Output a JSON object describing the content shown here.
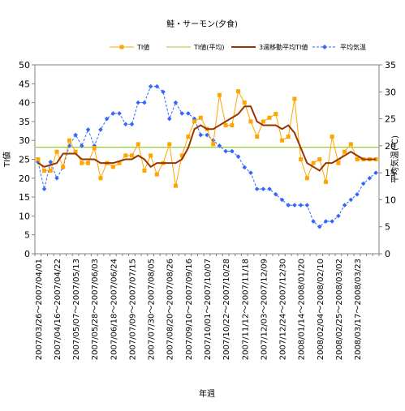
{
  "chart_data": {
    "type": "line",
    "title": "鮭・サーモン(夕食)",
    "xlabel": "年週",
    "ylabel_left": "TI値",
    "ylabel_right": "平均気温(℃)",
    "ylim_left": [
      0,
      50
    ],
    "ylim_right": [
      0,
      35
    ],
    "yticks_left": [
      0,
      5,
      10,
      15,
      20,
      25,
      30,
      35,
      40,
      45,
      50
    ],
    "yticks_right": [
      0,
      5,
      10,
      15,
      20,
      25,
      30,
      35
    ],
    "grid": false,
    "legend_position": "top",
    "x_tick_labels": [
      "2007/03/26～2007/04/01",
      "2007/04/16～2007/04/22",
      "2007/05/07～2007/05/13",
      "2007/05/28～2007/06/03",
      "2007/06/18～2007/06/24",
      "2007/07/09～2007/07/15",
      "2007/07/30～2007/08/05",
      "2007/08/20～2007/08/26",
      "2007/09/10～2007/09/16",
      "2007/10/01～2007/10/07",
      "2007/10/22～2007/10/28",
      "2007/11/12～2007/11/18",
      "2007/12/03～2007/12/09",
      "2007/12/24～2007/12/30",
      "2008/01/14～2008/01/20",
      "2008/02/04～2008/02/10",
      "2008/02/25～2008/03/02",
      "2008/03/17～2008/03/23"
    ],
    "x_tick_every": 3,
    "series": [
      {
        "name": "TI値",
        "axis": "left",
        "color": "#ffa500",
        "marker": "square",
        "values": [
          25,
          22,
          22,
          27,
          23,
          30,
          27,
          24,
          24,
          28,
          20,
          24,
          23,
          24,
          26,
          26,
          29,
          22,
          26,
          21,
          24,
          29,
          18,
          26,
          31,
          35,
          36,
          33,
          29,
          42,
          34,
          34,
          43,
          40,
          35,
          31,
          35,
          36,
          37,
          30,
          31,
          41,
          25,
          20,
          24,
          25,
          19,
          31,
          24,
          27,
          29,
          25,
          25,
          25,
          25
        ]
      },
      {
        "name": "TI値(平均)",
        "axis": "left",
        "color": "#99cc33",
        "values": [
          28.2,
          28.2
        ]
      },
      {
        "name": "3週移動平均TI値",
        "axis": "left",
        "color": "#993300",
        "values": [
          24,
          23,
          23.5,
          24,
          26.5,
          26.5,
          26.5,
          25,
          25,
          25,
          24,
          24,
          24,
          24.5,
          25,
          25,
          26,
          25,
          23,
          24,
          24,
          24,
          24,
          25,
          28,
          33,
          34,
          33,
          33,
          34,
          35,
          36,
          37,
          39,
          39,
          35,
          34,
          34,
          34,
          33,
          34,
          32,
          28,
          24,
          23,
          22,
          24,
          24,
          25,
          26,
          27,
          26,
          25,
          25,
          25
        ]
      },
      {
        "name": "平均気温",
        "axis": "right",
        "color": "#3366ff",
        "marker": "diamond",
        "dash": true,
        "values": [
          17,
          12,
          17,
          14,
          16,
          20,
          22,
          20,
          23,
          20,
          23,
          25,
          26,
          26,
          24,
          24,
          28,
          28,
          31,
          31,
          30,
          25,
          28,
          26,
          26,
          25,
          22,
          22,
          21,
          20,
          19,
          19,
          18,
          16,
          15,
          12,
          12,
          12,
          11,
          10,
          9,
          9,
          9,
          9,
          6,
          5,
          6,
          6,
          7,
          9,
          10,
          11,
          13,
          14,
          15
        ]
      }
    ]
  }
}
